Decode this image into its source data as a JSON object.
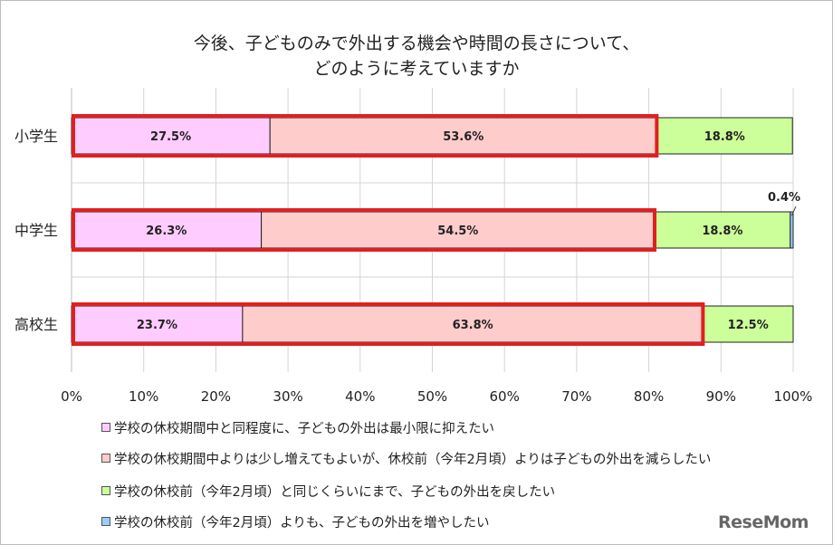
{
  "chart_data": {
    "type": "bar",
    "orientation": "horizontal",
    "stacked": true,
    "title_lines": [
      "今後、子どものみで外出する機会や時間の長さについて、",
      "どのように考えていますか"
    ],
    "categories": [
      "小学生",
      "中学生",
      "高校生"
    ],
    "series": [
      {
        "name": "学校の休校期間中と同程度に、子どもの外出は最小限に抑えたい",
        "color": "#ffccff",
        "values": [
          27.5,
          26.3,
          23.7
        ],
        "labels": [
          "27.5%",
          "26.3%",
          "23.7%"
        ]
      },
      {
        "name": "学校の休校期間中よりは少し増えてもよいが、休校前（今年2月頃）よりは子どもの外出を減らしたい",
        "color": "#ffcccc",
        "values": [
          53.6,
          54.5,
          63.8
        ],
        "labels": [
          "53.6%",
          "54.5%",
          "63.8%"
        ]
      },
      {
        "name": "学校の休校前（今年2月頃）と同じくらいにまで、子どもの外出を戻したい",
        "color": "#ccff99",
        "values": [
          18.8,
          18.8,
          12.5
        ],
        "labels": [
          "18.8%",
          "18.8%",
          "12.5%"
        ]
      },
      {
        "name": "学校の休校前（今年2月頃）よりも、子どもの外出を増やしたい",
        "color": "#99ccff",
        "values": [
          0,
          0.4,
          0
        ],
        "labels": [
          "",
          "0.4%",
          ""
        ]
      }
    ],
    "xaxis": {
      "min": 0,
      "max": 100,
      "ticks": [
        "0%",
        "10%",
        "20%",
        "30%",
        "40%",
        "50%",
        "60%",
        "70%",
        "80%",
        "90%",
        "100%"
      ]
    },
    "grid": "vertical",
    "legend_position": "bottom",
    "highlight_color": "#e02020"
  },
  "watermark": "ReseMom"
}
